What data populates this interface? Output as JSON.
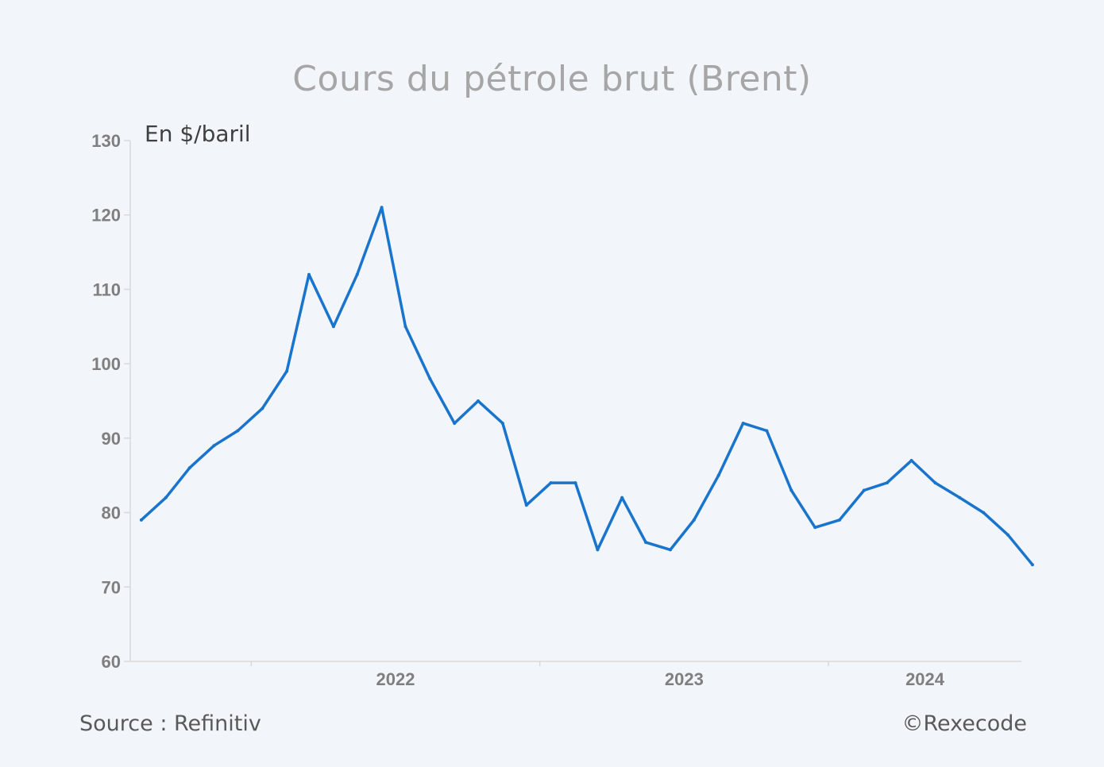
{
  "chart_data": {
    "type": "line",
    "title": "Cours du pétrole brut (Brent)",
    "ylabel": "En $/baril",
    "ylim": [
      60,
      130
    ],
    "yticks": [
      60,
      70,
      80,
      90,
      100,
      110,
      120,
      130
    ],
    "xlim": [
      "2021-08-01",
      "2024-09-01"
    ],
    "xtick_labels": [
      "2022",
      "2023",
      "2024"
    ],
    "color": "#1874cd",
    "series": [
      {
        "name": "Brent",
        "x": [
          "2021-08",
          "2021-09",
          "2021-10",
          "2021-11",
          "2021-12",
          "2022-01",
          "2022-02",
          "2022-03",
          "2022-04",
          "2022-05",
          "2022-06",
          "2022-07",
          "2022-08",
          "2022-09",
          "2022-10",
          "2022-11",
          "2022-12",
          "2023-01",
          "2023-02",
          "2023-03",
          "2023-04",
          "2023-05",
          "2023-06",
          "2023-07",
          "2023-08",
          "2023-09",
          "2023-10",
          "2023-11",
          "2023-12",
          "2024-01",
          "2024-02",
          "2024-03",
          "2024-04",
          "2024-05",
          "2024-06",
          "2024-07",
          "2024-08",
          "2024-09"
        ],
        "values": [
          79,
          82,
          86,
          89,
          91,
          94,
          99,
          112,
          105,
          112,
          121,
          105,
          98,
          92,
          95,
          92,
          81,
          84,
          84,
          75,
          82,
          76,
          75,
          79,
          85,
          92,
          91,
          83,
          78,
          79,
          83,
          84,
          87,
          84,
          82,
          80,
          77,
          73
        ]
      }
    ]
  },
  "source": "Source : Refinitiv",
  "copyright": "©Rexecode"
}
